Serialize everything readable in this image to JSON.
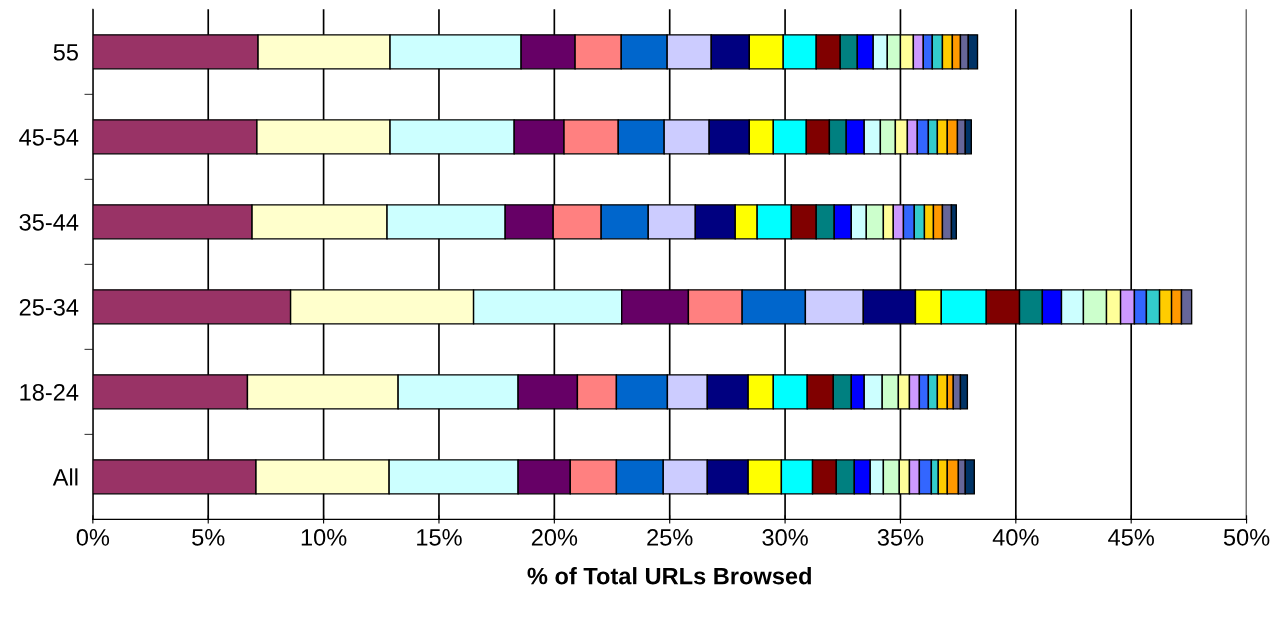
{
  "chart_data": {
    "type": "bar",
    "orientation": "horizontal",
    "stacked": true,
    "xlabel": "% of Total URLs Browsed",
    "categories": [
      "55",
      "45-54",
      "35-44",
      "25-34",
      "18-24",
      "All"
    ],
    "xlim": [
      0,
      50
    ],
    "xticks": [
      {
        "value": 0,
        "label": "0%"
      },
      {
        "value": 5,
        "label": "5%"
      },
      {
        "value": 10,
        "label": "10%"
      },
      {
        "value": 15,
        "label": "15%"
      },
      {
        "value": 20,
        "label": "20%"
      },
      {
        "value": 25,
        "label": "25%"
      },
      {
        "value": 30,
        "label": "30%"
      },
      {
        "value": 35,
        "label": "35%"
      },
      {
        "value": 40,
        "label": "40%"
      },
      {
        "value": 45,
        "label": "45%"
      },
      {
        "value": 50,
        "label": "50%"
      }
    ],
    "grid": "x",
    "legend": false,
    "series": [
      {
        "color": "#993366",
        "values": [
          7.16,
          7.11,
          6.9,
          8.57,
          6.7,
          7.07
        ]
      },
      {
        "color": "#ffffcc",
        "values": [
          5.72,
          5.77,
          5.85,
          7.93,
          6.53,
          5.77
        ]
      },
      {
        "color": "#ccffff",
        "values": [
          5.68,
          5.38,
          5.12,
          6.42,
          5.2,
          5.59
        ]
      },
      {
        "color": "#660066",
        "values": [
          2.34,
          2.16,
          2.08,
          2.89,
          2.57,
          2.26
        ]
      },
      {
        "color": "#ff8080",
        "values": [
          2.0,
          2.35,
          2.08,
          2.33,
          1.69,
          2.0
        ]
      },
      {
        "color": "#0066cc",
        "values": [
          1.99,
          1.99,
          2.04,
          2.74,
          2.21,
          2.03
        ]
      },
      {
        "color": "#ccccff",
        "values": [
          1.91,
          1.95,
          2.04,
          2.51,
          1.73,
          1.91
        ]
      },
      {
        "color": "#000080",
        "values": [
          1.65,
          1.74,
          1.73,
          2.26,
          1.77,
          1.77
        ]
      },
      {
        "color": "#ffff00",
        "values": [
          1.47,
          1.04,
          0.95,
          1.12,
          1.09,
          1.44
        ]
      },
      {
        "color": "#00ffff",
        "values": [
          1.43,
          1.43,
          1.48,
          1.95,
          1.47,
          1.35
        ]
      },
      {
        "color": "#800000",
        "values": [
          1.04,
          1.0,
          1.08,
          1.44,
          1.13,
          1.03
        ]
      },
      {
        "color": "#008080",
        "values": [
          0.74,
          0.73,
          0.78,
          0.99,
          0.78,
          0.78
        ]
      },
      {
        "color": "#0000ff",
        "values": [
          0.69,
          0.78,
          0.74,
          0.83,
          0.56,
          0.69
        ]
      },
      {
        "color": "#ccffff",
        "values": [
          0.61,
          0.7,
          0.65,
          0.95,
          0.78,
          0.57
        ]
      },
      {
        "color": "#ccffcc",
        "values": [
          0.57,
          0.65,
          0.74,
          1.0,
          0.7,
          0.69
        ]
      },
      {
        "color": "#ffff99",
        "values": [
          0.56,
          0.52,
          0.43,
          0.61,
          0.48,
          0.44
        ]
      },
      {
        "color": "#cc99ff",
        "values": [
          0.43,
          0.43,
          0.44,
          0.6,
          0.43,
          0.43
        ]
      },
      {
        "color": "#3366ff",
        "values": [
          0.39,
          0.48,
          0.47,
          0.52,
          0.39,
          0.52
        ]
      },
      {
        "color": "#33cccc",
        "values": [
          0.44,
          0.39,
          0.44,
          0.57,
          0.39,
          0.3
        ]
      },
      {
        "color": "#ffcc00",
        "values": [
          0.43,
          0.43,
          0.39,
          0.52,
          0.43,
          0.39
        ]
      },
      {
        "color": "#ff9900",
        "values": [
          0.35,
          0.44,
          0.39,
          0.43,
          0.26,
          0.48
        ]
      },
      {
        "color": "#666699",
        "values": [
          0.34,
          0.34,
          0.39,
          0.44,
          0.31,
          0.3
        ]
      },
      {
        "color": "#003366",
        "values": [
          0.4,
          0.26,
          0.21,
          null,
          0.3,
          0.39
        ]
      }
    ]
  }
}
